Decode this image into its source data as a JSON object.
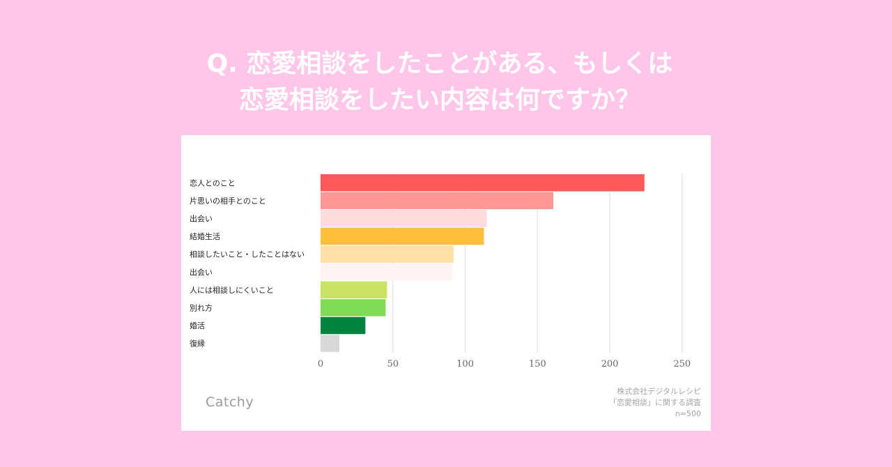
{
  "header": {
    "title_line1": "Q. 恋愛相談をしたことがある、もしくは",
    "title_line2": "恋愛相談をしたい内容は何ですか？"
  },
  "brand": "Catchy",
  "source": {
    "line1": "株式会社デジタルレシピ",
    "line2": "「恋愛相談」に関する調査",
    "line3": "n=500"
  },
  "chart_data": {
    "type": "bar",
    "orientation": "horizontal",
    "categories": [
      "恋人とのこと",
      "片思いの相手とのこと",
      "出会い",
      "結婚生活",
      "相談したいこと・したことはない",
      "出会い",
      "人には相談しにくいこと",
      "別れ方",
      "婚活",
      "復縁"
    ],
    "values": [
      224,
      161,
      115,
      113,
      92,
      91,
      46,
      45,
      31,
      13
    ],
    "colors": [
      "#ff5a5a",
      "#ff9797",
      "#ffdcdc",
      "#ffbe3c",
      "#ffe0a6",
      "#fff3f3",
      "#cbe364",
      "#80db56",
      "#00843d",
      "#d8d8d8"
    ],
    "xlim": [
      0,
      250
    ],
    "xticks": [
      0,
      50,
      100,
      150,
      200,
      250
    ],
    "grid": true,
    "legend": "none"
  }
}
